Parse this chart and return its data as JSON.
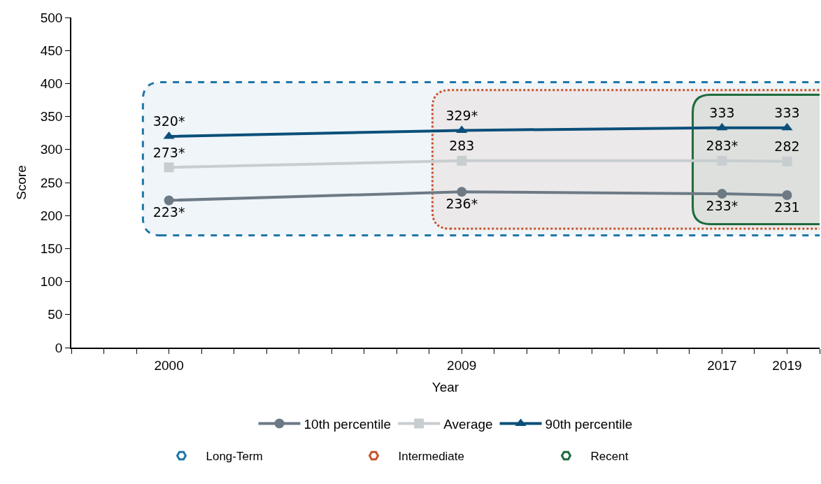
{
  "chart_data": {
    "type": "line",
    "xlabel": "Year",
    "ylabel": "Score",
    "x": [
      2000,
      2009,
      2017,
      2019
    ],
    "xlim": [
      1997,
      2020
    ],
    "xticks": [
      {
        "value": 1997,
        "label": null
      },
      {
        "value": 1998,
        "label": null
      },
      {
        "value": 1999,
        "label": null
      },
      2000,
      {
        "value": 2001,
        "label": null
      },
      {
        "value": 2002,
        "label": null
      },
      {
        "value": 2003,
        "label": null
      },
      {
        "value": 2004,
        "label": null
      },
      {
        "value": 2005,
        "label": null
      },
      {
        "value": 2006,
        "label": null
      },
      {
        "value": 2007,
        "label": null
      },
      {
        "value": 2008,
        "label": null
      },
      2009,
      {
        "value": 2010,
        "label": null
      },
      {
        "value": 2011,
        "label": null
      },
      {
        "value": 2012,
        "label": null
      },
      {
        "value": 2013,
        "label": null
      },
      {
        "value": 2014,
        "label": null
      },
      {
        "value": 2015,
        "label": null
      },
      {
        "value": 2016,
        "label": null
      },
      2017,
      {
        "value": 2018,
        "label": null
      },
      2019,
      {
        "value": 2020,
        "label": null
      }
    ],
    "ylim": [
      0,
      500
    ],
    "yticks": [
      0,
      50,
      100,
      150,
      200,
      250,
      300,
      350,
      400,
      450,
      500
    ],
    "series": [
      {
        "name": "10th percentile",
        "color": "#6d7a86",
        "marker": "circle",
        "values": [
          223,
          236,
          233,
          231
        ],
        "value_labels": [
          "223*",
          "236*",
          "233*",
          "231"
        ]
      },
      {
        "name": "Average",
        "color": "#c8cdd0",
        "marker": "square",
        "values": [
          273,
          283,
          283,
          282
        ],
        "value_labels": [
          "273*",
          "283",
          "283*",
          "282"
        ]
      },
      {
        "name": "90th percentile",
        "color": "#0b4f7a",
        "marker": "triangle",
        "values": [
          320,
          329,
          333,
          333
        ],
        "value_labels": [
          "320*",
          "329*",
          "333",
          "333"
        ]
      }
    ],
    "bands": [
      {
        "axis": "x",
        "from": 1999.2,
        "to": 2020,
        "label": "Long-Term",
        "color": "#1f77a8"
      },
      {
        "axis": "x",
        "from": 2008.1,
        "to": 2020,
        "label": "Intermediate",
        "color": "#c8532a"
      },
      {
        "axis": "x",
        "from": 2016.1,
        "to": 2020,
        "label": "Recent",
        "color": "#1c6b3c"
      }
    ],
    "legend": "bottom",
    "grid": false
  }
}
